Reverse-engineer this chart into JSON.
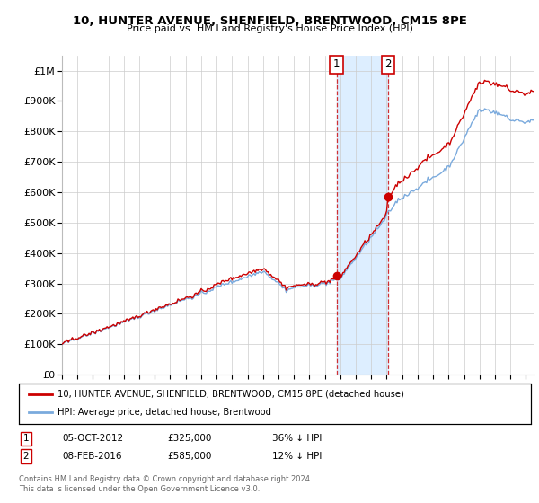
{
  "title": "10, HUNTER AVENUE, SHENFIELD, BRENTWOOD, CM15 8PE",
  "subtitle": "Price paid vs. HM Land Registry's House Price Index (HPI)",
  "legend_line1": "10, HUNTER AVENUE, SHENFIELD, BRENTWOOD, CM15 8PE (detached house)",
  "legend_line2": "HPI: Average price, detached house, Brentwood",
  "footnote1": "Contains HM Land Registry data © Crown copyright and database right 2024.",
  "footnote2": "This data is licensed under the Open Government Licence v3.0.",
  "annotation1": {
    "label": "1",
    "date": "05-OCT-2012",
    "price": "£325,000",
    "pct": "36% ↓ HPI"
  },
  "annotation2": {
    "label": "2",
    "date": "08-FEB-2016",
    "price": "£585,000",
    "pct": "12% ↓ HPI"
  },
  "hpi_color": "#7aaadd",
  "price_color": "#cc0000",
  "shading_color": "#ddeeff",
  "annotation_color": "#cc0000",
  "background_color": "#ffffff",
  "ylim": [
    0,
    1050000
  ],
  "yticks": [
    0,
    100000,
    200000,
    300000,
    400000,
    500000,
    600000,
    700000,
    800000,
    900000,
    1000000
  ],
  "ytick_labels": [
    "£0",
    "£100K",
    "£200K",
    "£300K",
    "£400K",
    "£500K",
    "£600K",
    "£700K",
    "£800K",
    "£900K",
    "£1M"
  ],
  "sale1_x": 2012.75,
  "sale1_y": 325000,
  "sale2_x": 2016.1,
  "sale2_y": 585000,
  "xmin": 1995,
  "xmax": 2025.5
}
